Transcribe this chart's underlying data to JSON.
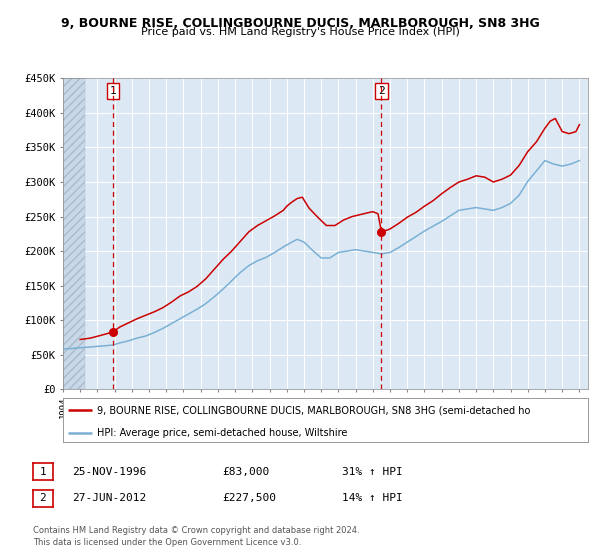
{
  "title": "9, BOURNE RISE, COLLINGBOURNE DUCIS, MARLBOROUGH, SN8 3HG",
  "subtitle": "Price paid vs. HM Land Registry's House Price Index (HPI)",
  "xlim": [
    1994.0,
    2024.5
  ],
  "ylim": [
    0,
    450000
  ],
  "yticks": [
    0,
    50000,
    100000,
    150000,
    200000,
    250000,
    300000,
    350000,
    400000,
    450000
  ],
  "ytick_labels": [
    "£0",
    "£50K",
    "£100K",
    "£150K",
    "£200K",
    "£250K",
    "£300K",
    "£350K",
    "£400K",
    "£450K"
  ],
  "sale1_x": 1996.9,
  "sale1_y": 83000,
  "sale1_label": "1",
  "sale1_date": "25-NOV-1996",
  "sale1_price": "£83,000",
  "sale1_hpi": "31% ↑ HPI",
  "sale2_x": 2012.5,
  "sale2_y": 227500,
  "sale2_label": "2",
  "sale2_date": "27-JUN-2012",
  "sale2_price": "£227,500",
  "sale2_hpi": "14% ↑ HPI",
  "property_color": "#cc0000",
  "hpi_color": "#7ab0d4",
  "vline_color": "#cc0000",
  "background_color": "#dce9f5",
  "hatched_region_end": 1995.3,
  "legend_property": "9, BOURNE RISE, COLLINGBOURNE DUCIS, MARLBOROUGH, SN8 3HG (semi-detached ho",
  "legend_hpi": "HPI: Average price, semi-detached house, Wiltshire",
  "footer1": "Contains HM Land Registry data © Crown copyright and database right 2024.",
  "footer2": "This data is licensed under the Open Government Licence v3.0."
}
